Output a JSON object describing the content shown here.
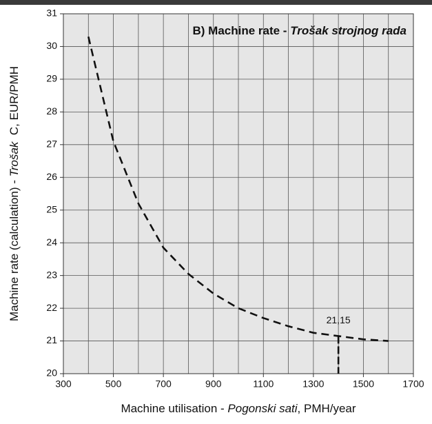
{
  "chart_data": {
    "type": "line",
    "title": [
      "B) Machine rate - ",
      "Trošak strojnog rada"
    ],
    "x_label": [
      "Machine utilisation - ",
      "Pogonski sati",
      ", PMH/year"
    ],
    "y_label": [
      "Machine rate (calculation) - ",
      "Trošak",
      "  C, EUR/PMH"
    ],
    "x": [
      400,
      500,
      600,
      700,
      800,
      900,
      1000,
      1100,
      1200,
      1300,
      1400,
      1500,
      1600
    ],
    "series": [
      {
        "color": "#111111",
        "values": [
          30.3,
          27.1,
          25.2,
          23.85,
          23.05,
          22.45,
          22.0,
          21.7,
          21.45,
          21.25,
          21.15,
          21.05,
          21.0
        ]
      }
    ],
    "xlim": [
      300,
      1700
    ],
    "ylim": [
      20,
      31
    ],
    "xticks": [
      300,
      500,
      700,
      900,
      1100,
      1300,
      1500,
      1700
    ],
    "x_minor_ticks": [
      400,
      600,
      800,
      1000,
      1200,
      1400,
      1600
    ],
    "yticks": [
      20,
      21,
      22,
      23,
      24,
      25,
      26,
      27,
      28,
      29,
      30,
      31
    ],
    "grid": true,
    "annotation": {
      "text": "21,15",
      "x": 1400,
      "y": 21.15
    }
  }
}
